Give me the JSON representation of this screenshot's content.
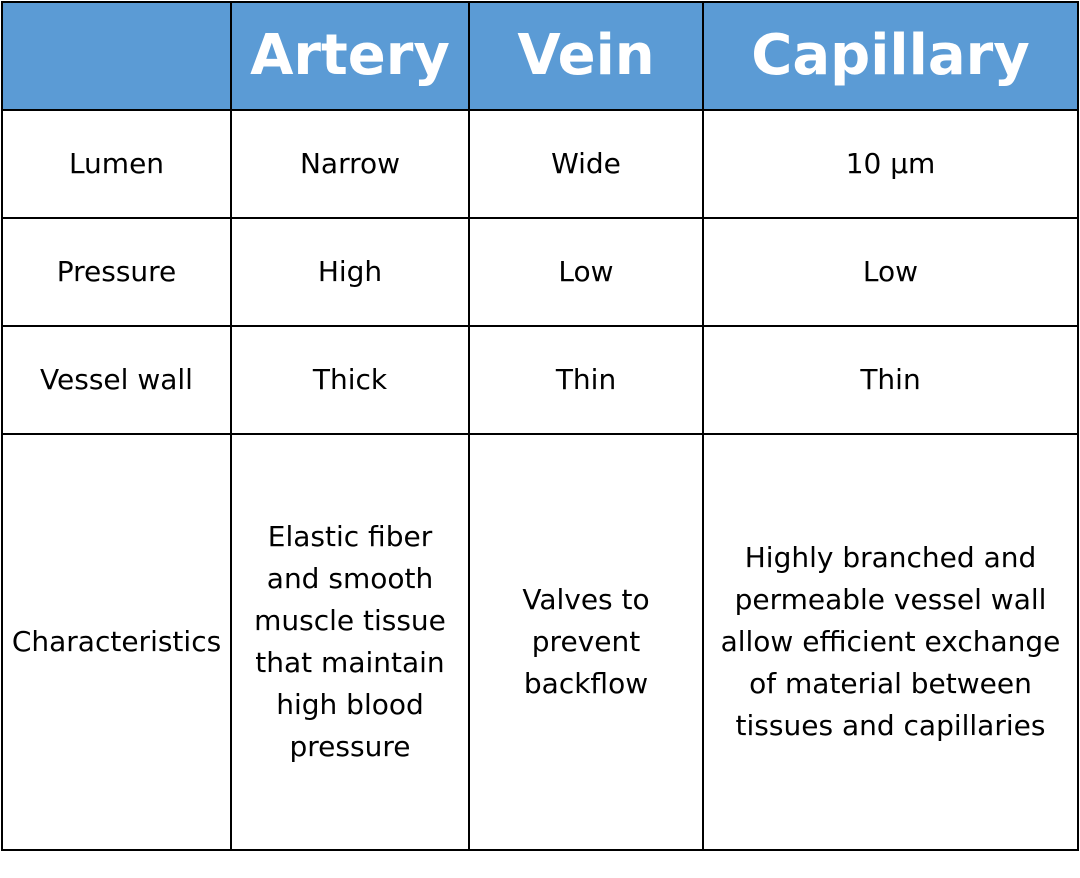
{
  "table": {
    "header": {
      "corner": "",
      "columns": [
        "Artery",
        "Vein",
        "Capillary"
      ]
    },
    "rows": [
      {
        "label": "Lumen",
        "artery": "Narrow",
        "vein": "Wide",
        "capillary": "10 μm"
      },
      {
        "label": "Pressure",
        "artery": "High",
        "vein": "Low",
        "capillary": "Low"
      },
      {
        "label": "Vessel wall",
        "artery": "Thick",
        "vein": "Thin",
        "capillary": "Thin"
      },
      {
        "label": "Characteristics",
        "artery": "Elastic fiber and smooth muscle tissue that maintain high blood pressure",
        "vein": "Valves to prevent backflow",
        "capillary": "Highly branched and permeable vessel wall allow efficient exchange of material between tissues and capillaries"
      }
    ],
    "colors": {
      "header_bg": "#5b9bd5",
      "header_text": "#ffffff",
      "border": "#000000"
    }
  }
}
